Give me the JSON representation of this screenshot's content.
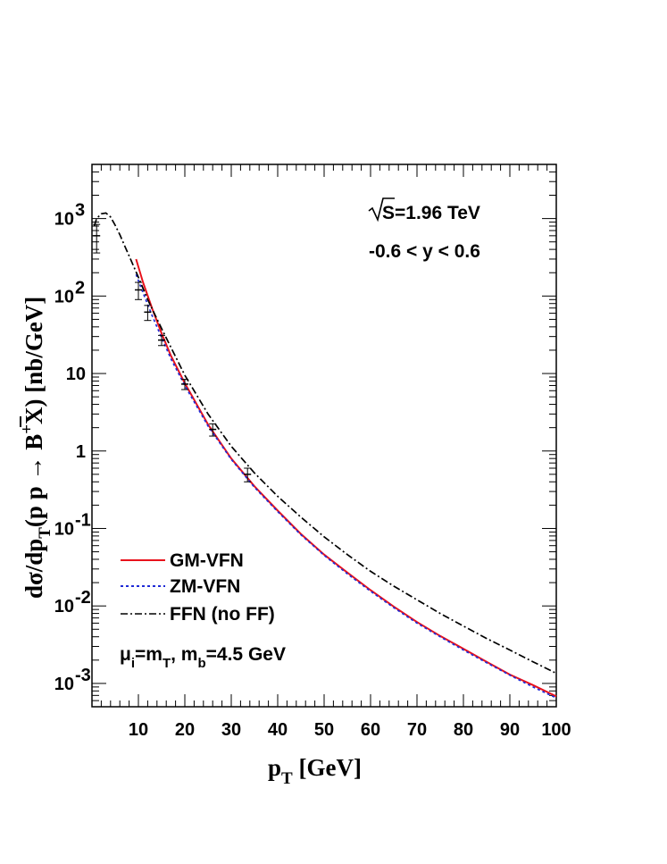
{
  "chart_data": {
    "type": "line",
    "x_axis": {
      "label": "p",
      "label_sub": "T",
      "label_unit": " [GeV]",
      "range": [
        0,
        100
      ],
      "scale": "linear",
      "ticks": [
        "10",
        "20",
        "30",
        "40",
        "50",
        "60",
        "70",
        "80",
        "90",
        "100"
      ]
    },
    "y_axis": {
      "label": "dσ/dp",
      "label_sub": "T",
      "label_rest": "(p p → B",
      "label_sup": "+",
      "label_tail": "X) [nb/GeV]",
      "range": [
        0.0005,
        5000
      ],
      "scale": "log",
      "ticks": [
        {
          "value": 1000,
          "base": "10",
          "exp": "3"
        },
        {
          "value": 100,
          "base": "10",
          "exp": "2"
        },
        {
          "value": 10,
          "base": "10",
          "exp": ""
        },
        {
          "value": 1,
          "base": "1",
          "exp": ""
        },
        {
          "value": 0.1,
          "base": "10",
          "exp": "-1"
        },
        {
          "value": 0.01,
          "base": "10",
          "exp": "-2"
        },
        {
          "value": 0.001,
          "base": "10",
          "exp": "-3"
        }
      ]
    },
    "annotations": {
      "energy_symbol": "S",
      "energy": "=1.96 TeV",
      "rapidity": "-0.6 < y < 0.6",
      "scale_mu": "μ",
      "scale_mu_sub": "i",
      "scale_eq": "=m",
      "scale_mt_sub": "T",
      "scale_mb": ", m",
      "scale_mb_sub": "b",
      "scale_mb_val": "=4.5 GeV"
    },
    "series": [
      {
        "name": "GM-VFN",
        "color": "#e8121c",
        "style": "solid",
        "x": [
          9.5,
          11,
          13,
          15,
          17,
          20,
          25,
          30,
          35,
          40,
          45,
          50,
          55,
          60,
          65,
          70,
          75,
          80,
          85,
          90,
          95,
          100
        ],
        "y": [
          300,
          150,
          68,
          33,
          17,
          7.5,
          2.2,
          0.8,
          0.35,
          0.17,
          0.085,
          0.046,
          0.027,
          0.016,
          0.0098,
          0.0062,
          0.0041,
          0.0028,
          0.0019,
          0.0013,
          0.00095,
          0.00068
        ]
      },
      {
        "name": "ZM-VFN",
        "color": "#1f2bd6",
        "style": "dotted",
        "x": [
          9.5,
          11,
          13,
          15,
          17,
          20,
          25,
          30,
          35,
          40,
          45,
          50,
          55,
          60,
          65,
          70,
          75,
          80,
          85,
          90,
          95,
          100
        ],
        "y": [
          190,
          110,
          55,
          29,
          15.5,
          7.0,
          2.1,
          0.78,
          0.34,
          0.165,
          0.083,
          0.045,
          0.026,
          0.0155,
          0.0095,
          0.006,
          0.004,
          0.0027,
          0.00185,
          0.00128,
          0.0009,
          0.00065
        ]
      },
      {
        "name": "FFN (no FF)",
        "color": "#000000",
        "style": "dashdot",
        "x": [
          0.5,
          1,
          2,
          3,
          4,
          5,
          6,
          7,
          8,
          10,
          12,
          15,
          20,
          25,
          30,
          35,
          40,
          45,
          50,
          55,
          60,
          65,
          70,
          75,
          80,
          85,
          90,
          95,
          100
        ],
        "y": [
          800,
          1000,
          1150,
          1180,
          1050,
          820,
          620,
          450,
          330,
          175,
          90,
          38,
          9.5,
          3.0,
          1.15,
          0.52,
          0.26,
          0.14,
          0.078,
          0.046,
          0.028,
          0.018,
          0.012,
          0.008,
          0.0055,
          0.0038,
          0.0027,
          0.0019,
          0.00135
        ]
      }
    ],
    "data_points": {
      "x": [
        1,
        10,
        12,
        15,
        20,
        26,
        33.5
      ],
      "y": [
        600,
        120,
        62,
        27,
        7.3,
        1.9,
        0.5
      ],
      "yerr_rel": [
        0.4,
        0.25,
        0.22,
        0.15,
        0.15,
        0.18,
        0.2
      ]
    }
  }
}
